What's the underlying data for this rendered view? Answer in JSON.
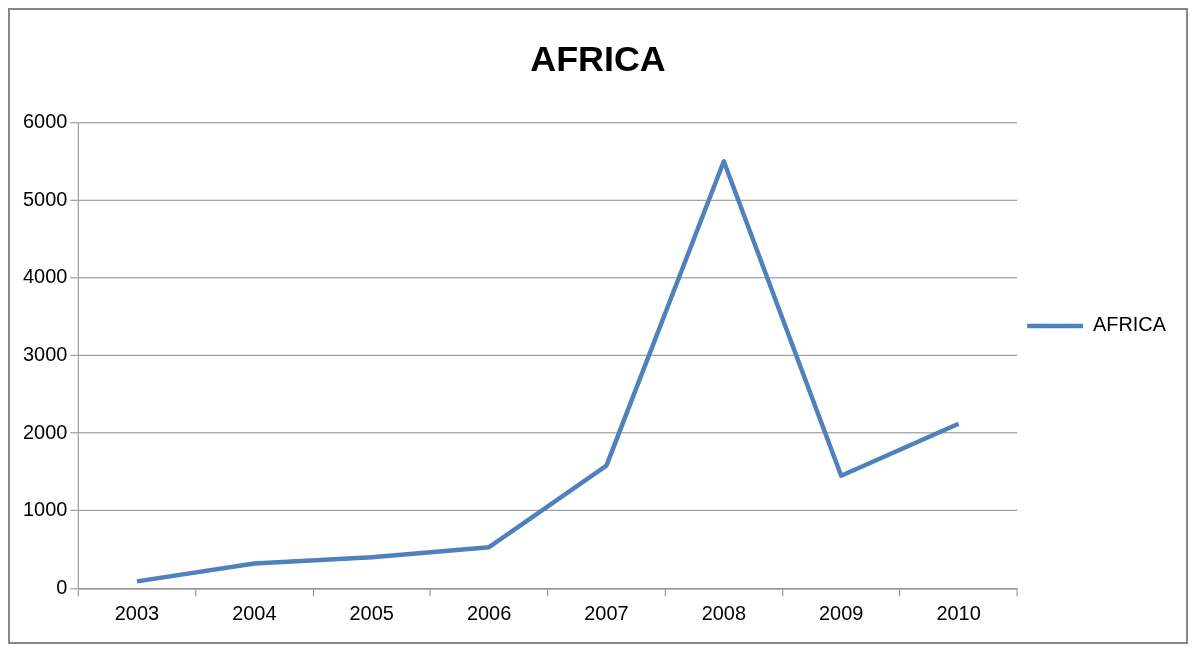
{
  "chart_data": {
    "type": "line",
    "title": "AFRICA",
    "categories": [
      "2003",
      "2004",
      "2005",
      "2006",
      "2007",
      "2008",
      "2009",
      "2010"
    ],
    "series": [
      {
        "name": "AFRICA",
        "color": "#4f81bd",
        "values": [
          90,
          320,
          400,
          530,
          1580,
          5500,
          1450,
          2120
        ]
      }
    ],
    "ylim": [
      0,
      6000
    ],
    "yticks": [
      0,
      1000,
      2000,
      3000,
      4000,
      5000,
      6000
    ],
    "grid": "y",
    "legend": "right",
    "marker": "none",
    "line_style": "solid"
  }
}
